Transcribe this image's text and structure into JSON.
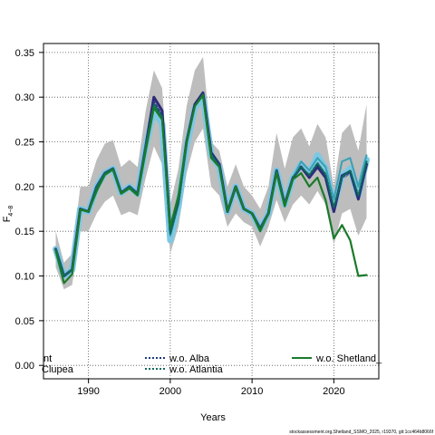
{
  "chart_data": {
    "type": "line",
    "xlabel": "Years",
    "ylabel_main": "F",
    "ylabel_sub": "4−8",
    "xlim": [
      1984.5,
      2025.5
    ],
    "ylim": [
      -0.015,
      0.36
    ],
    "x_ticks": [
      1990,
      2000,
      2010,
      2020
    ],
    "x_tick_labels": [
      "1990",
      "2000",
      "2010",
      "2020"
    ],
    "y_ticks": [
      0.0,
      0.05,
      0.1,
      0.15,
      0.2,
      0.25,
      0.3,
      0.35
    ],
    "y_tick_labels": [
      "0.00",
      "0.05",
      "0.10",
      "0.15",
      "0.20",
      "0.25",
      "0.30",
      "0.35"
    ],
    "grid": true,
    "footer": "stockassessment.org,Shetland_SSMO_2025, r19370, git:1cc464b8066f",
    "x": [
      1986,
      1987,
      1988,
      1989,
      1990,
      1991,
      1992,
      1993,
      1994,
      1995,
      1996,
      1997,
      1998,
      1999,
      2000,
      2001,
      2002,
      2003,
      2004,
      2005,
      2006,
      2007,
      2008,
      2009,
      2010,
      2011,
      2012,
      2013,
      2014,
      2015,
      2016,
      2017,
      2018,
      2019,
      2020,
      2021,
      2022,
      2023,
      2024
    ],
    "band": {
      "upper": [
        0.15,
        0.115,
        0.125,
        0.2,
        0.2,
        0.23,
        0.248,
        0.252,
        0.222,
        0.23,
        0.222,
        0.285,
        0.33,
        0.31,
        0.18,
        0.22,
        0.29,
        0.33,
        0.345,
        0.25,
        0.24,
        0.2,
        0.225,
        0.2,
        0.19,
        0.175,
        0.2,
        0.26,
        0.22,
        0.255,
        0.265,
        0.245,
        0.27,
        0.255,
        0.2,
        0.26,
        0.27,
        0.24,
        0.292
      ],
      "lower": [
        0.11,
        0.085,
        0.09,
        0.15,
        0.15,
        0.17,
        0.183,
        0.19,
        0.168,
        0.172,
        0.168,
        0.21,
        0.245,
        0.225,
        0.125,
        0.155,
        0.215,
        0.25,
        0.265,
        0.2,
        0.19,
        0.155,
        0.17,
        0.16,
        0.155,
        0.133,
        0.155,
        0.185,
        0.16,
        0.18,
        0.19,
        0.18,
        0.195,
        0.18,
        0.135,
        0.17,
        0.175,
        0.145,
        0.165
      ]
    },
    "series": [
      {
        "name": "",
        "color": "#4a4a4a",
        "width": 1.3,
        "values": [
          0.13,
          0.1,
          0.107,
          0.175,
          0.172,
          0.2,
          0.215,
          0.22,
          0.193,
          0.2,
          0.192,
          0.245,
          0.3,
          0.285,
          0.15,
          0.183,
          0.25,
          0.292,
          0.305,
          0.238,
          0.225,
          0.172,
          0.2,
          0.175,
          0.17,
          0.153,
          0.17,
          0.218,
          0.18,
          0.21,
          0.22,
          0.21,
          0.228,
          0.215,
          0.172,
          0.208,
          0.215,
          0.185,
          0.225
        ]
      },
      {
        "name": "",
        "color": "#7ec8e3",
        "width": 7,
        "values": [
          0.13,
          0.1,
          0.107,
          0.175,
          0.172,
          0.2,
          0.215,
          0.22,
          0.193,
          0.2,
          0.192,
          0.245,
          0.285,
          0.27,
          0.14,
          0.178,
          0.245,
          0.288,
          0.3,
          0.235,
          0.222,
          0.172,
          0.2,
          0.175,
          0.17,
          0.153,
          0.17,
          0.218,
          0.18,
          0.21,
          0.225,
          0.215,
          0.235,
          0.22,
          0.178,
          0.212,
          0.22,
          0.19,
          0.23
        ]
      },
      {
        "name": "",
        "color": "#2e2a7a",
        "width": 3,
        "values": [
          0.13,
          0.1,
          0.107,
          0.175,
          0.172,
          0.2,
          0.215,
          0.22,
          0.193,
          0.2,
          0.192,
          0.245,
          0.3,
          0.285,
          0.15,
          0.183,
          0.25,
          0.292,
          0.305,
          0.238,
          0.225,
          0.172,
          0.2,
          0.175,
          0.17,
          0.153,
          0.17,
          0.218,
          0.18,
          0.21,
          0.222,
          0.21,
          0.222,
          0.21,
          0.172,
          0.212,
          0.217,
          0.186,
          0.225
        ]
      },
      {
        "name": "",
        "color": "#3aa0b4",
        "width": 2,
        "values": [
          0.13,
          0.1,
          0.107,
          0.175,
          0.172,
          0.2,
          0.215,
          0.22,
          0.193,
          0.2,
          0.192,
          0.245,
          0.29,
          0.275,
          0.145,
          0.18,
          0.248,
          0.29,
          0.302,
          0.236,
          0.223,
          0.172,
          0.2,
          0.175,
          0.17,
          0.153,
          0.17,
          0.218,
          0.18,
          0.21,
          0.228,
          0.218,
          0.232,
          0.222,
          0.186,
          0.228,
          0.232,
          0.2,
          0.235
        ]
      },
      {
        "name": "w.o. Alba",
        "color": "#1f3a7a",
        "width": 1.5,
        "dash": "3,2",
        "values": [
          0.13,
          0.1,
          0.107,
          0.175,
          0.172,
          0.2,
          0.215,
          0.22,
          0.193,
          0.2,
          0.192,
          0.245,
          0.295,
          0.28,
          0.148,
          0.182,
          0.249,
          0.291,
          0.304,
          0.237,
          0.224,
          0.172,
          0.2,
          0.175,
          0.17,
          0.153,
          0.17,
          0.218,
          0.18,
          0.21,
          0.221,
          0.212,
          0.224,
          0.212,
          0.175,
          0.21,
          0.216,
          0.188,
          0.226
        ]
      },
      {
        "name": "w.o. Atlantia",
        "color": "#0e6b5a",
        "width": 2,
        "dash": "2,2",
        "values": [
          0.13,
          0.1,
          0.107,
          0.175,
          0.172,
          0.2,
          0.215,
          0.22,
          0.193,
          0.2,
          0.192,
          0.245,
          0.292,
          0.278,
          0.147,
          0.181,
          0.248,
          0.29,
          0.303,
          0.236,
          0.223,
          0.172,
          0.2,
          0.175,
          0.17,
          0.153,
          0.17,
          0.218,
          0.18,
          0.21,
          0.222,
          0.213,
          0.226,
          0.214,
          0.177,
          0.211,
          0.218,
          0.19,
          0.228
        ]
      },
      {
        "name": "w.o. Shetland_",
        "color": "#1a7a2a",
        "width": 2.2,
        "values": [
          0.128,
          0.092,
          0.102,
          0.174,
          0.172,
          0.195,
          0.213,
          0.219,
          0.192,
          0.198,
          0.19,
          0.24,
          0.288,
          0.275,
          0.155,
          0.19,
          0.25,
          0.29,
          0.302,
          0.232,
          0.222,
          0.172,
          0.2,
          0.175,
          0.17,
          0.15,
          0.17,
          0.215,
          0.178,
          0.208,
          0.215,
          0.2,
          0.21,
          0.185,
          0.142,
          0.157,
          0.14,
          0.1,
          0.101
        ]
      }
    ],
    "legend": [
      {
        "label": "nt",
        "color": "",
        "style": "none"
      },
      {
        "label": "Clupea",
        "color": "",
        "style": "none"
      },
      {
        "label": "w.o. Alba",
        "color": "#1f3a7a",
        "style": "dashed"
      },
      {
        "label": "w.o. Atlantia",
        "color": "#0e6b5a",
        "style": "dashed"
      },
      {
        "label": "w.o. Shetland_",
        "color": "#1a7a2a",
        "style": "solid"
      }
    ]
  }
}
